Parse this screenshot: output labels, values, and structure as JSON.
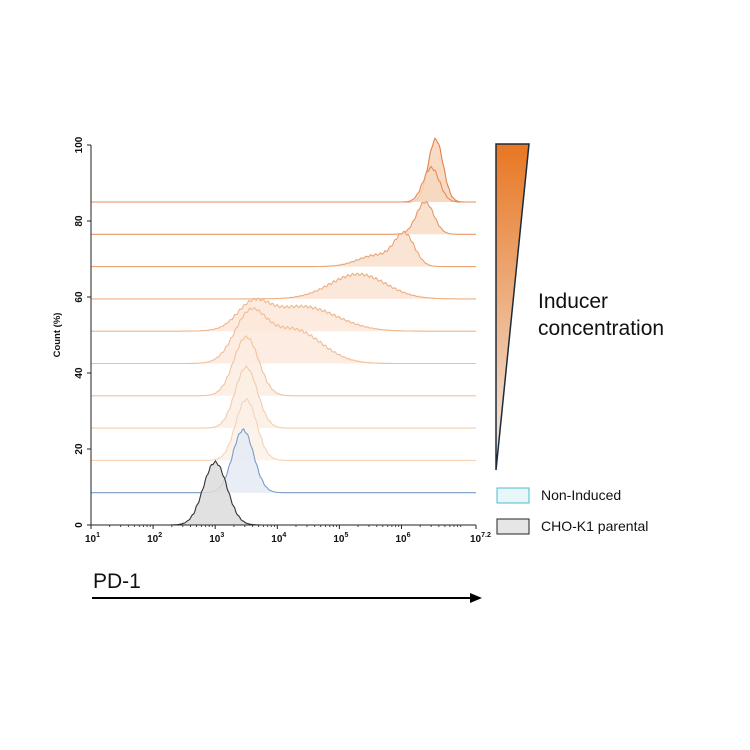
{
  "chart_data": {
    "type": "area",
    "ylabel": "Count (%)",
    "xlabel": "PD-1",
    "xscale": "log10",
    "xlim": [
      1,
      7.2
    ],
    "ylim": [
      0,
      100
    ],
    "yticks": [
      "0",
      "20",
      "40",
      "60",
      "80",
      "100"
    ],
    "xticks": [
      {
        "base": "10",
        "exp": "1",
        "v": 1
      },
      {
        "base": "10",
        "exp": "2",
        "v": 2
      },
      {
        "base": "10",
        "exp": "3",
        "v": 3
      },
      {
        "base": "10",
        "exp": "4",
        "v": 4
      },
      {
        "base": "10",
        "exp": "5",
        "v": 5
      },
      {
        "base": "10",
        "exp": "6",
        "v": 6
      },
      {
        "base": "10",
        "exp": "7.2",
        "v": 7.2
      }
    ],
    "gradient_label": "Inducer concentration",
    "gradient_colors": [
      "#f3ece8",
      "#e87722"
    ],
    "legend": [
      {
        "label": "Non-Induced",
        "fill": "#e6f6f9",
        "stroke": "#4bbfcf"
      },
      {
        "label": "CHO-K1 parental",
        "fill": "#e6e6e6",
        "stroke": "#222222"
      }
    ],
    "series": [
      {
        "baseline": 0,
        "peaks": [
          {
            "mu": 3.0,
            "sigma": 0.19,
            "h": 16.5
          }
        ],
        "fill": "#dcdcdc",
        "stroke": "#333333"
      },
      {
        "baseline": 8.5,
        "peaks": [
          {
            "mu": 3.45,
            "sigma": 0.17,
            "h": 16.5
          }
        ],
        "fill": "#e4eaf4",
        "stroke": "#7a9cc8"
      },
      {
        "baseline": 17,
        "peaks": [
          {
            "mu": 3.5,
            "sigma": 0.17,
            "h": 16
          }
        ],
        "fill": "#fcf1e8",
        "stroke": "#f6d3b5"
      },
      {
        "baseline": 25.5,
        "peaks": [
          {
            "mu": 3.5,
            "sigma": 0.18,
            "h": 16
          }
        ],
        "fill": "#fcefe4",
        "stroke": "#f4ccaa"
      },
      {
        "baseline": 34,
        "peaks": [
          {
            "mu": 3.5,
            "sigma": 0.2,
            "h": 15.5
          }
        ],
        "fill": "#fbece0",
        "stroke": "#f2c49f"
      },
      {
        "baseline": 42.5,
        "peaks": [
          {
            "mu": 3.55,
            "sigma": 0.25,
            "h": 11.5
          },
          {
            "mu": 4.25,
            "sigma": 0.45,
            "h": 9
          }
        ],
        "fill": "#fbe9dc",
        "stroke": "#f0bd95"
      },
      {
        "baseline": 51,
        "peaks": [
          {
            "mu": 3.6,
            "sigma": 0.25,
            "h": 6
          },
          {
            "mu": 4.4,
            "sigma": 0.55,
            "h": 6.5
          }
        ],
        "fill": "#fbe7d8",
        "stroke": "#efb68b"
      },
      {
        "baseline": 59.5,
        "peaks": [
          {
            "mu": 5.3,
            "sigma": 0.45,
            "h": 6.5
          }
        ],
        "fill": "#fae4d3",
        "stroke": "#edae80"
      },
      {
        "baseline": 68,
        "peaks": [
          {
            "mu": 6.05,
            "sigma": 0.16,
            "h": 8
          },
          {
            "mu": 5.6,
            "sigma": 0.3,
            "h": 3
          }
        ],
        "fill": "#f9e0cc",
        "stroke": "#eba373"
      },
      {
        "baseline": 76.5,
        "peaks": [
          {
            "mu": 6.38,
            "sigma": 0.14,
            "h": 8.5
          }
        ],
        "fill": "#f8dcc5",
        "stroke": "#e99766"
      },
      {
        "baseline": 85,
        "peaks": [
          {
            "mu": 6.48,
            "sigma": 0.13,
            "h": 9
          }
        ],
        "fill": "#f7d8c0",
        "stroke": "#e68b58"
      },
      {
        "baseline": 85,
        "peaks": [
          {
            "mu": 6.55,
            "sigma": 0.12,
            "h": 16.5
          }
        ],
        "fill": "#f7d5bb",
        "stroke": "#e3824b"
      }
    ]
  }
}
